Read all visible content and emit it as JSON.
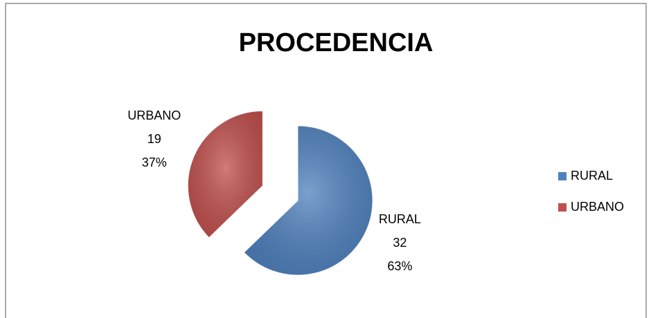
{
  "chart_data": {
    "type": "pie",
    "title": "PROCEDENCIA",
    "categories": [
      "RURAL",
      "URBANO"
    ],
    "values": [
      32,
      19
    ],
    "percent_labels": [
      "63%",
      "37%"
    ],
    "colors": [
      "#4f81bd",
      "#c0504d"
    ],
    "explode": [
      false,
      true
    ],
    "legend": "right"
  }
}
